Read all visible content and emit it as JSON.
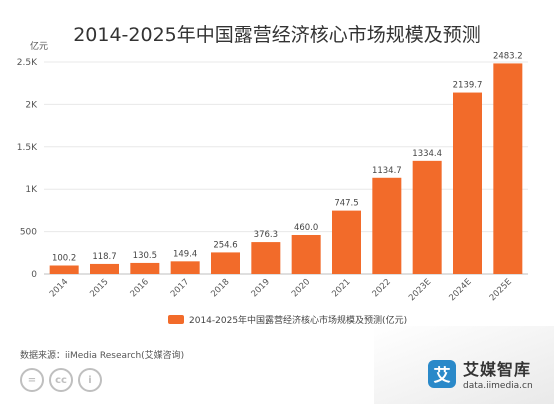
{
  "chart_data": {
    "type": "bar",
    "title": "2014-2025年中国露营经济核心市场规模及预测",
    "unit": "亿元",
    "categories": [
      "2014",
      "2015",
      "2016",
      "2017",
      "2018",
      "2019",
      "2020",
      "2021",
      "2022",
      "2023E",
      "2024E",
      "2025E"
    ],
    "series": [
      {
        "name": "2014-2025年中国露营经济核心市场规模及预测(亿元)",
        "values": [
          100.2,
          118.7,
          130.5,
          149.4,
          254.6,
          376.3,
          460.0,
          747.5,
          1134.7,
          1334.4,
          2139.7,
          2483.2
        ]
      }
    ],
    "value_labels": [
      "100.2",
      "118.7",
      "130.5",
      "149.4",
      "254.6",
      "376.3",
      "460.0",
      "747.5",
      "1134.7",
      "1334.4",
      "2139.7",
      "2483.2"
    ],
    "ylim": [
      0,
      2500
    ],
    "yticks": [
      0,
      500,
      1000,
      1500,
      2000,
      2500
    ],
    "ytick_labels": [
      "0",
      "500",
      "1K",
      "1.5K",
      "2K",
      "2.5K"
    ],
    "legend_position": "bottom",
    "grid": true,
    "bar_color": "#f26b2a"
  },
  "legend_label": "2014-2025年中国露营经济核心市场规模及预测(亿元)",
  "source": "数据来源：iiMedia Research(艾媒咨询)",
  "brand": {
    "name": "艾媒智库",
    "logo_glyph": "艾",
    "url": "data.iimedia.cn"
  },
  "license_icons": [
    "=",
    "cc",
    "i"
  ]
}
